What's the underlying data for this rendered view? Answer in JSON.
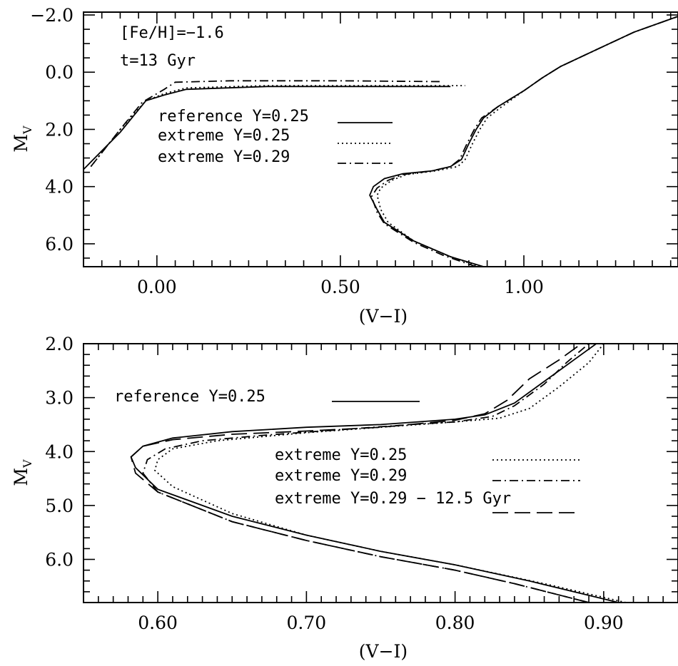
{
  "chart_data": [
    {
      "type": "line",
      "xlabel": "(V−I)",
      "ylabel": "M",
      "ylabel_sub": "V",
      "xlim": [
        -0.2,
        1.42
      ],
      "ylim": [
        6.8,
        -2.1
      ],
      "y_inverted": true,
      "x_ticks": [
        "0.00",
        "0.50",
        "1.00"
      ],
      "x_tick_values": [
        0.0,
        0.5,
        1.0
      ],
      "y_ticks": [
        "−2.0",
        "0.0",
        "2.0",
        "4.0",
        "6.0"
      ],
      "y_tick_values": [
        -2.0,
        0.0,
        2.0,
        4.0,
        6.0
      ],
      "annotations": [
        "[Fe/H]=−1.6",
        "t=13 Gyr"
      ],
      "grid": false,
      "legend_position": "upper-middle",
      "series": [
        {
          "name": "reference Y=0.25",
          "dash": "solid",
          "groups": [
            [
              [
                -0.2,
                3.4
              ],
              [
                -0.1,
                2.1
              ],
              [
                -0.03,
                1.0
              ],
              [
                0.02,
                0.8
              ],
              [
                0.08,
                0.6
              ],
              [
                0.3,
                0.5
              ],
              [
                0.55,
                0.5
              ],
              [
                0.8,
                0.5
              ]
            ],
            [
              [
                0.89,
                6.8
              ],
              [
                0.8,
                6.45
              ],
              [
                0.7,
                5.9
              ],
              [
                0.62,
                5.25
              ],
              [
                0.6,
                4.8
              ],
              [
                0.58,
                4.3
              ],
              [
                0.59,
                4.0
              ],
              [
                0.62,
                3.72
              ],
              [
                0.67,
                3.55
              ],
              [
                0.75,
                3.45
              ],
              [
                0.8,
                3.3
              ],
              [
                0.83,
                3.05
              ],
              [
                0.85,
                2.5
              ],
              [
                0.87,
                2.0
              ],
              [
                0.89,
                1.6
              ],
              [
                0.93,
                1.2
              ],
              [
                1.0,
                0.65
              ],
              [
                1.05,
                0.2
              ],
              [
                1.1,
                -0.2
              ],
              [
                1.2,
                -0.8
              ],
              [
                1.3,
                -1.4
              ],
              [
                1.42,
                -1.95
              ]
            ]
          ]
        },
        {
          "name": "extreme Y=0.25",
          "dash": "dotted",
          "groups": [
            [
              [
                -0.18,
                3.3
              ],
              [
                -0.1,
                2.0
              ],
              [
                -0.03,
                1.0
              ],
              [
                0.02,
                0.75
              ],
              [
                0.08,
                0.55
              ],
              [
                0.3,
                0.47
              ],
              [
                0.55,
                0.47
              ],
              [
                0.84,
                0.47
              ]
            ],
            [
              [
                0.88,
                6.8
              ],
              [
                0.8,
                6.45
              ],
              [
                0.7,
                5.9
              ],
              [
                0.63,
                5.25
              ],
              [
                0.61,
                4.8
              ],
              [
                0.6,
                4.3
              ],
              [
                0.61,
                4.05
              ],
              [
                0.64,
                3.78
              ],
              [
                0.68,
                3.58
              ],
              [
                0.76,
                3.45
              ],
              [
                0.82,
                3.3
              ],
              [
                0.84,
                3.05
              ],
              [
                0.86,
                2.5
              ],
              [
                0.88,
                2.0
              ],
              [
                0.9,
                1.6
              ],
              [
                0.94,
                1.2
              ],
              [
                1.0,
                0.65
              ],
              [
                1.05,
                0.2
              ],
              [
                1.1,
                -0.2
              ],
              [
                1.2,
                -0.8
              ],
              [
                1.3,
                -1.4
              ],
              [
                1.42,
                -1.95
              ]
            ]
          ]
        },
        {
          "name": "extreme Y=0.29",
          "dash": "dash-dot",
          "groups": [
            [
              [
                -0.18,
                3.3
              ],
              [
                -0.1,
                2.0
              ],
              [
                -0.04,
                1.05
              ],
              [
                0.02,
                0.6
              ],
              [
                0.05,
                0.35
              ],
              [
                0.2,
                0.3
              ],
              [
                0.5,
                0.3
              ],
              [
                0.78,
                0.33
              ]
            ],
            [
              [
                0.87,
                6.8
              ],
              [
                0.78,
                6.4
              ],
              [
                0.7,
                5.95
              ],
              [
                0.62,
                5.3
              ],
              [
                0.6,
                4.9
              ],
              [
                0.585,
                4.35
              ],
              [
                0.6,
                4.05
              ],
              [
                0.63,
                3.78
              ],
              [
                0.67,
                3.58
              ],
              [
                0.75,
                3.45
              ],
              [
                0.8,
                3.3
              ],
              [
                0.825,
                3.05
              ],
              [
                0.845,
                2.5
              ],
              [
                0.865,
                2.0
              ],
              [
                0.885,
                1.6
              ],
              [
                0.93,
                1.2
              ],
              [
                1.0,
                0.65
              ],
              [
                1.05,
                0.2
              ],
              [
                1.1,
                -0.2
              ],
              [
                1.2,
                -0.8
              ],
              [
                1.3,
                -1.4
              ],
              [
                1.42,
                -1.95
              ]
            ]
          ]
        }
      ],
      "legend": [
        {
          "label": "reference Y=0.25",
          "dash": "solid"
        },
        {
          "label": "extreme Y=0.25",
          "dash": "dotted"
        },
        {
          "label": "extreme Y=0.29",
          "dash": "dash-dot"
        }
      ]
    },
    {
      "type": "line",
      "xlabel": "(V−I)",
      "ylabel": "M",
      "ylabel_sub": "V",
      "xlim": [
        0.55,
        0.95
      ],
      "ylim": [
        6.8,
        2.0
      ],
      "y_inverted": true,
      "x_ticks": [
        "0.60",
        "0.70",
        "0.80",
        "0.90"
      ],
      "x_tick_values": [
        0.6,
        0.7,
        0.8,
        0.9
      ],
      "y_ticks": [
        "2.0",
        "3.0",
        "4.0",
        "5.0",
        "6.0"
      ],
      "y_tick_values": [
        2.0,
        3.0,
        4.0,
        5.0,
        6.0
      ],
      "grid": false,
      "legend_position": "inside",
      "series": [
        {
          "name": "reference Y=0.25",
          "dash": "solid",
          "groups": [
            [
              [
                0.91,
                6.8
              ],
              [
                0.85,
                6.4
              ],
              [
                0.8,
                6.1
              ],
              [
                0.75,
                5.85
              ],
              [
                0.7,
                5.55
              ],
              [
                0.65,
                5.2
              ],
              [
                0.6,
                4.7
              ],
              [
                0.585,
                4.3
              ],
              [
                0.582,
                4.1
              ],
              [
                0.59,
                3.9
              ],
              [
                0.61,
                3.75
              ],
              [
                0.65,
                3.63
              ],
              [
                0.7,
                3.55
              ],
              [
                0.75,
                3.5
              ],
              [
                0.8,
                3.4
              ],
              [
                0.82,
                3.32
              ],
              [
                0.84,
                3.1
              ],
              [
                0.86,
                2.7
              ],
              [
                0.88,
                2.3
              ],
              [
                0.895,
                2.0
              ]
            ]
          ]
        },
        {
          "name": "extreme Y=0.25",
          "dash": "dotted",
          "groups": [
            [
              [
                0.915,
                6.8
              ],
              [
                0.86,
                6.45
              ],
              [
                0.8,
                6.1
              ],
              [
                0.75,
                5.85
              ],
              [
                0.7,
                5.55
              ],
              [
                0.65,
                5.15
              ],
              [
                0.61,
                4.65
              ],
              [
                0.598,
                4.35
              ],
              [
                0.6,
                4.15
              ],
              [
                0.61,
                3.95
              ],
              [
                0.64,
                3.8
              ],
              [
                0.7,
                3.65
              ],
              [
                0.75,
                3.55
              ],
              [
                0.8,
                3.45
              ],
              [
                0.83,
                3.38
              ],
              [
                0.85,
                3.2
              ],
              [
                0.87,
                2.8
              ],
              [
                0.89,
                2.35
              ],
              [
                0.9,
                2.0
              ]
            ]
          ]
        },
        {
          "name": "extreme Y=0.29",
          "dash": "dash-dot",
          "groups": [
            [
              [
                0.89,
                6.8
              ],
              [
                0.84,
                6.45
              ],
              [
                0.8,
                6.2
              ],
              [
                0.75,
                5.95
              ],
              [
                0.7,
                5.65
              ],
              [
                0.65,
                5.3
              ],
              [
                0.6,
                4.75
              ],
              [
                0.59,
                4.4
              ],
              [
                0.593,
                4.15
              ],
              [
                0.605,
                3.95
              ],
              [
                0.63,
                3.8
              ],
              [
                0.67,
                3.7
              ],
              [
                0.72,
                3.6
              ],
              [
                0.77,
                3.5
              ],
              [
                0.8,
                3.45
              ],
              [
                0.825,
                3.35
              ],
              [
                0.84,
                3.15
              ],
              [
                0.86,
                2.75
              ],
              [
                0.875,
                2.35
              ],
              [
                0.89,
                2.0
              ]
            ]
          ]
        },
        {
          "name": "extreme Y=0.29 −   12.5 Gyr",
          "dash": "long-dash",
          "groups": [
            [
              [
                0.89,
                6.8
              ],
              [
                0.84,
                6.45
              ],
              [
                0.8,
                6.2
              ],
              [
                0.75,
                5.95
              ],
              [
                0.7,
                5.65
              ],
              [
                0.65,
                5.3
              ],
              [
                0.6,
                4.75
              ],
              [
                0.585,
                4.4
              ],
              [
                0.582,
                4.1
              ],
              [
                0.59,
                3.9
              ],
              [
                0.61,
                3.78
              ],
              [
                0.65,
                3.68
              ],
              [
                0.7,
                3.62
              ],
              [
                0.75,
                3.55
              ],
              [
                0.8,
                3.42
              ],
              [
                0.82,
                3.3
              ],
              [
                0.835,
                3.05
              ],
              [
                0.85,
                2.65
              ],
              [
                0.87,
                2.3
              ],
              [
                0.885,
                2.0
              ]
            ]
          ]
        }
      ],
      "legend": [
        {
          "label": "reference Y=0.25",
          "dash": "solid"
        },
        {
          "label": "extreme Y=0.25",
          "dash": "dotted"
        },
        {
          "label": "extreme Y=0.29",
          "dash": "dash-dot"
        },
        {
          "label": "extreme Y=0.29 −   12.5 Gyr",
          "dash": "long-dash"
        }
      ]
    }
  ]
}
